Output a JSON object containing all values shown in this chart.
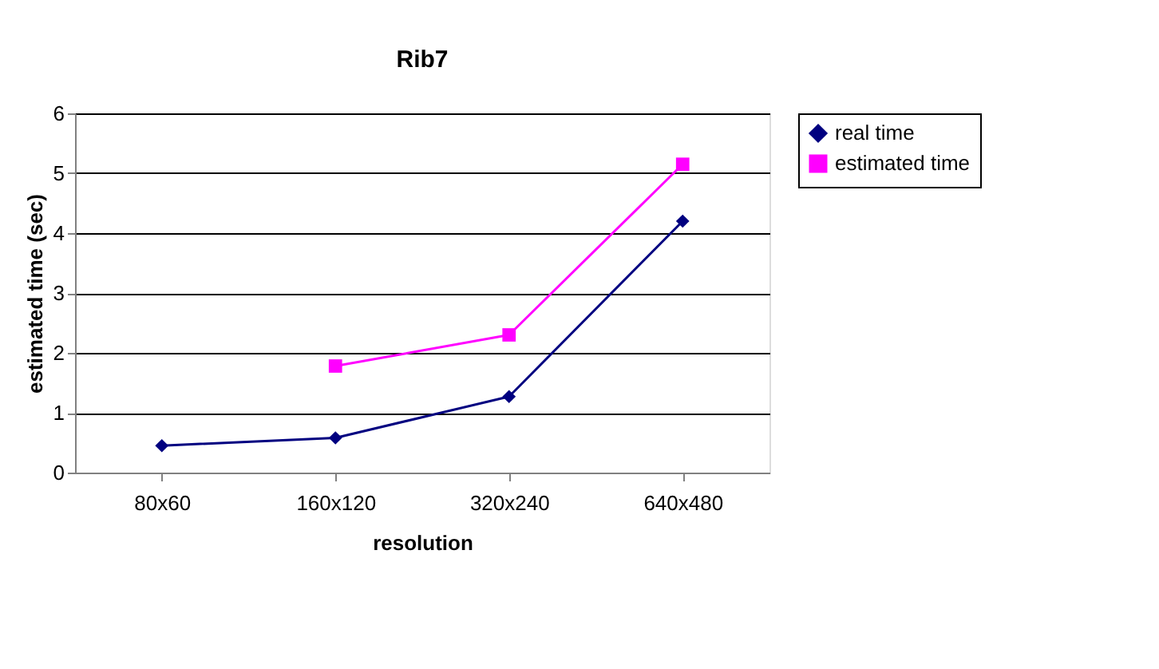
{
  "chart_data": {
    "type": "line",
    "title": "Rib7",
    "xlabel": "resolution",
    "ylabel": "estimated time (sec)",
    "categories": [
      "80x60",
      "160x120",
      "320x240",
      "640x480"
    ],
    "series": [
      {
        "name": "real time",
        "color": "#000080",
        "marker": "diamond",
        "values": [
          0.45,
          0.58,
          1.27,
          4.2
        ]
      },
      {
        "name": "estimated time",
        "color": "#ff00ff",
        "marker": "square",
        "values": [
          null,
          1.78,
          2.3,
          5.15
        ]
      }
    ],
    "ylim": [
      0,
      6
    ],
    "yticks": [
      0,
      1,
      2,
      3,
      4,
      5,
      6
    ],
    "grid": "y",
    "legend": "right"
  }
}
